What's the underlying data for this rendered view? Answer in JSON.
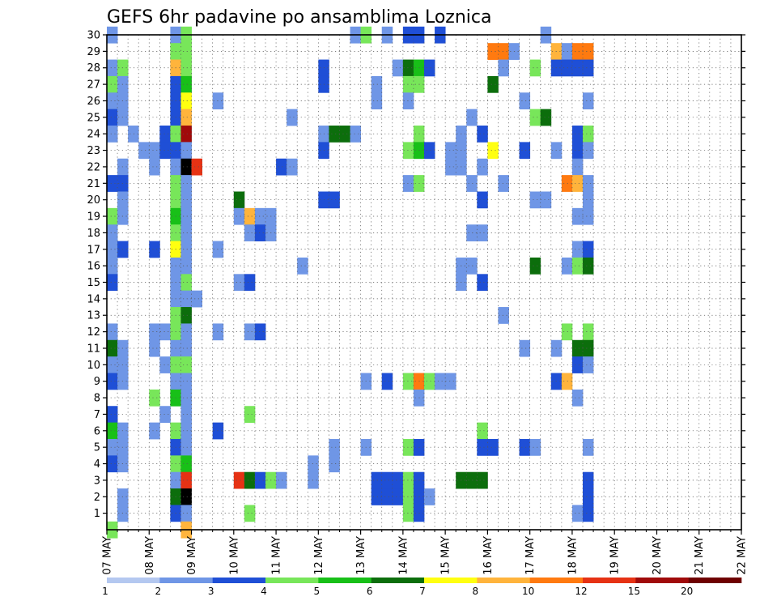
{
  "chart_data": {
    "type": "heatmap",
    "title": "GEFS 6hr padavine po ansamblima Loznica",
    "xlabel": "",
    "ylabel": "",
    "x_ticks": [
      "07 MAY",
      "08 MAY",
      "09 MAY",
      "10 MAY",
      "11 MAY",
      "12 MAY",
      "13 MAY",
      "14 MAY",
      "15 MAY",
      "16 MAY",
      "17 MAY",
      "18 MAY",
      "19 MAY",
      "20 MAY",
      "21 MAY",
      "22 MAY"
    ],
    "y_ticks": [
      "1",
      "2",
      "3",
      "4",
      "5",
      "6",
      "7",
      "8",
      "9",
      "10",
      "11",
      "12",
      "13",
      "14",
      "15",
      "16",
      "17",
      "18",
      "19",
      "20",
      "21",
      "22",
      "23",
      "24",
      "25",
      "26",
      "27",
      "28",
      "29",
      "30"
    ],
    "y_range": [
      0,
      30
    ],
    "steps_per_day": 4,
    "steps": 60,
    "grid": "dotted",
    "legend": "bottom",
    "colorbar": {
      "labels": [
        "1",
        "2",
        "3",
        "4",
        "5",
        "6",
        "7",
        "8",
        "10",
        "12",
        "15",
        "20"
      ],
      "colors": [
        "#b4c8f0",
        "#6f96e6",
        "#1f4fd6",
        "#78e65a",
        "#18c018",
        "#0c6e0c",
        "#ffff10",
        "#ffb43c",
        "#ff7a10",
        "#e63214",
        "#a00a0a",
        "#6e0000"
      ]
    },
    "cells": [
      [
        0,
        30,
        1
      ],
      [
        0,
        28,
        1
      ],
      [
        0,
        27,
        3
      ],
      [
        0,
        26,
        1
      ],
      [
        0,
        25,
        2
      ],
      [
        0,
        24,
        1
      ],
      [
        0,
        21,
        2
      ],
      [
        0,
        19,
        3
      ],
      [
        0,
        18,
        1
      ],
      [
        0,
        17,
        1
      ],
      [
        0,
        16,
        1
      ],
      [
        0,
        15,
        2
      ],
      [
        0,
        12,
        1
      ],
      [
        0,
        11,
        5
      ],
      [
        0,
        10,
        1
      ],
      [
        0,
        9,
        2
      ],
      [
        0,
        7,
        2
      ],
      [
        0,
        6,
        4
      ],
      [
        0,
        5,
        1
      ],
      [
        0,
        4,
        2
      ],
      [
        0,
        0,
        3
      ],
      [
        1,
        28,
        3
      ],
      [
        1,
        27,
        1
      ],
      [
        1,
        26,
        1
      ],
      [
        1,
        25,
        1
      ],
      [
        1,
        22,
        1
      ],
      [
        1,
        21,
        2
      ],
      [
        1,
        20,
        1
      ],
      [
        1,
        19,
        1
      ],
      [
        1,
        17,
        2
      ],
      [
        1,
        11,
        1
      ],
      [
        1,
        10,
        1
      ],
      [
        1,
        9,
        1
      ],
      [
        1,
        6,
        1
      ],
      [
        1,
        5,
        1
      ],
      [
        1,
        4,
        1
      ],
      [
        1,
        2,
        1
      ],
      [
        1,
        1,
        1
      ],
      [
        2,
        24,
        1
      ],
      [
        3,
        23,
        1
      ],
      [
        4,
        23,
        1
      ],
      [
        4,
        22,
        1
      ],
      [
        4,
        17,
        2
      ],
      [
        4,
        12,
        1
      ],
      [
        4,
        11,
        1
      ],
      [
        4,
        8,
        3
      ],
      [
        4,
        6,
        1
      ],
      [
        5,
        24,
        2
      ],
      [
        5,
        23,
        2
      ],
      [
        5,
        12,
        1
      ],
      [
        5,
        10,
        1
      ],
      [
        5,
        7,
        1
      ],
      [
        6,
        30,
        1
      ],
      [
        6,
        29,
        3
      ],
      [
        6,
        28,
        7
      ],
      [
        6,
        27,
        2
      ],
      [
        6,
        26,
        2
      ],
      [
        6,
        25,
        2
      ],
      [
        6,
        24,
        3
      ],
      [
        6,
        23,
        2
      ],
      [
        6,
        22,
        1
      ],
      [
        6,
        21,
        3
      ],
      [
        6,
        20,
        3
      ],
      [
        6,
        19,
        4
      ],
      [
        6,
        18,
        3
      ],
      [
        6,
        17,
        6
      ],
      [
        6,
        16,
        1
      ],
      [
        6,
        15,
        1
      ],
      [
        6,
        14,
        1
      ],
      [
        6,
        13,
        3
      ],
      [
        6,
        12,
        3
      ],
      [
        6,
        11,
        1
      ],
      [
        6,
        10,
        3
      ],
      [
        6,
        9,
        1
      ],
      [
        6,
        8,
        4
      ],
      [
        6,
        6,
        3
      ],
      [
        6,
        5,
        2
      ],
      [
        6,
        4,
        3
      ],
      [
        6,
        3,
        1
      ],
      [
        6,
        2,
        5
      ],
      [
        6,
        1,
        2
      ],
      [
        7,
        30,
        3
      ],
      [
        7,
        29,
        3
      ],
      [
        7,
        28,
        3
      ],
      [
        7,
        27,
        4
      ],
      [
        7,
        26,
        6
      ],
      [
        7,
        25,
        7
      ],
      [
        7,
        24,
        10
      ],
      [
        7,
        23,
        1
      ],
      [
        7,
        22,
        12
      ],
      [
        7,
        21,
        1
      ],
      [
        7,
        20,
        1
      ],
      [
        7,
        19,
        1
      ],
      [
        7,
        18,
        1
      ],
      [
        7,
        17,
        1
      ],
      [
        7,
        16,
        1
      ],
      [
        7,
        15,
        3
      ],
      [
        7,
        14,
        1
      ],
      [
        7,
        13,
        5
      ],
      [
        7,
        12,
        1
      ],
      [
        7,
        11,
        1
      ],
      [
        7,
        10,
        3
      ],
      [
        7,
        9,
        1
      ],
      [
        7,
        8,
        1
      ],
      [
        7,
        7,
        1
      ],
      [
        7,
        6,
        1
      ],
      [
        7,
        5,
        1
      ],
      [
        7,
        4,
        4
      ],
      [
        7,
        3,
        9
      ],
      [
        7,
        2,
        12
      ],
      [
        7,
        1,
        1
      ],
      [
        7,
        0,
        7
      ],
      [
        8,
        22,
        9
      ],
      [
        8,
        14,
        1
      ],
      [
        10,
        26,
        1
      ],
      [
        10,
        17,
        1
      ],
      [
        10,
        12,
        1
      ],
      [
        10,
        6,
        2
      ],
      [
        12,
        20,
        5
      ],
      [
        12,
        19,
        1
      ],
      [
        12,
        15,
        1
      ],
      [
        12,
        3,
        9
      ],
      [
        13,
        19,
        7
      ],
      [
        13,
        18,
        1
      ],
      [
        13,
        15,
        2
      ],
      [
        13,
        12,
        1
      ],
      [
        13,
        7,
        3
      ],
      [
        13,
        3,
        5
      ],
      [
        13,
        1,
        3
      ],
      [
        14,
        19,
        1
      ],
      [
        14,
        18,
        2
      ],
      [
        14,
        12,
        2
      ],
      [
        14,
        3,
        2
      ],
      [
        15,
        19,
        1
      ],
      [
        15,
        18,
        1
      ],
      [
        15,
        3,
        3
      ],
      [
        16,
        22,
        2
      ],
      [
        16,
        3,
        1
      ],
      [
        17,
        25,
        1
      ],
      [
        17,
        22,
        1
      ],
      [
        18,
        16,
        1
      ],
      [
        19,
        4,
        1
      ],
      [
        19,
        3,
        1
      ],
      [
        20,
        28,
        2
      ],
      [
        20,
        27,
        2
      ],
      [
        20,
        24,
        1
      ],
      [
        20,
        23,
        2
      ],
      [
        20,
        20,
        2
      ],
      [
        21,
        24,
        5
      ],
      [
        21,
        20,
        2
      ],
      [
        21,
        5,
        1
      ],
      [
        21,
        4,
        1
      ],
      [
        22,
        24,
        5
      ],
      [
        23,
        30,
        1
      ],
      [
        23,
        24,
        1
      ],
      [
        24,
        30,
        3
      ],
      [
        24,
        9,
        1
      ],
      [
        24,
        5,
        1
      ],
      [
        25,
        27,
        1
      ],
      [
        25,
        26,
        1
      ],
      [
        25,
        3,
        2
      ],
      [
        25,
        2,
        2
      ],
      [
        26,
        30,
        1
      ],
      [
        26,
        9,
        2
      ],
      [
        26,
        3,
        2
      ],
      [
        26,
        2,
        2
      ],
      [
        27,
        28,
        1
      ],
      [
        27,
        3,
        2
      ],
      [
        27,
        2,
        2
      ],
      [
        28,
        30,
        2
      ],
      [
        28,
        28,
        5
      ],
      [
        28,
        27,
        3
      ],
      [
        28,
        26,
        1
      ],
      [
        28,
        23,
        3
      ],
      [
        28,
        21,
        1
      ],
      [
        28,
        9,
        3
      ],
      [
        28,
        5,
        3
      ],
      [
        28,
        3,
        3
      ],
      [
        28,
        2,
        3
      ],
      [
        28,
        1,
        3
      ],
      [
        29,
        30,
        2
      ],
      [
        29,
        28,
        4
      ],
      [
        29,
        27,
        3
      ],
      [
        29,
        24,
        3
      ],
      [
        29,
        23,
        4
      ],
      [
        29,
        21,
        3
      ],
      [
        29,
        9,
        8
      ],
      [
        29,
        8,
        1
      ],
      [
        29,
        5,
        2
      ],
      [
        29,
        3,
        2
      ],
      [
        29,
        2,
        2
      ],
      [
        29,
        1,
        2
      ],
      [
        30,
        28,
        2
      ],
      [
        30,
        23,
        2
      ],
      [
        30,
        9,
        3
      ],
      [
        30,
        2,
        1
      ],
      [
        31,
        30,
        2
      ],
      [
        31,
        9,
        1
      ],
      [
        32,
        23,
        1
      ],
      [
        32,
        22,
        1
      ],
      [
        32,
        9,
        1
      ],
      [
        33,
        24,
        1
      ],
      [
        33,
        23,
        1
      ],
      [
        33,
        22,
        1
      ],
      [
        33,
        16,
        1
      ],
      [
        33,
        15,
        1
      ],
      [
        33,
        3,
        5
      ],
      [
        34,
        25,
        1
      ],
      [
        34,
        21,
        1
      ],
      [
        34,
        18,
        1
      ],
      [
        34,
        16,
        1
      ],
      [
        34,
        3,
        5
      ],
      [
        35,
        24,
        2
      ],
      [
        35,
        22,
        1
      ],
      [
        35,
        20,
        2
      ],
      [
        35,
        18,
        1
      ],
      [
        35,
        15,
        2
      ],
      [
        35,
        6,
        3
      ],
      [
        35,
        5,
        2
      ],
      [
        35,
        3,
        5
      ],
      [
        36,
        29,
        8
      ],
      [
        36,
        27,
        5
      ],
      [
        36,
        23,
        6
      ],
      [
        36,
        5,
        2
      ],
      [
        37,
        29,
        8
      ],
      [
        37,
        28,
        1
      ],
      [
        37,
        21,
        1
      ],
      [
        37,
        13,
        1
      ],
      [
        38,
        29,
        1
      ],
      [
        39,
        26,
        1
      ],
      [
        39,
        23,
        2
      ],
      [
        39,
        11,
        1
      ],
      [
        39,
        5,
        2
      ],
      [
        40,
        28,
        3
      ],
      [
        40,
        25,
        3
      ],
      [
        40,
        20,
        1
      ],
      [
        40,
        16,
        5
      ],
      [
        40,
        5,
        1
      ],
      [
        41,
        30,
        1
      ],
      [
        41,
        25,
        5
      ],
      [
        41,
        20,
        1
      ],
      [
        42,
        29,
        7
      ],
      [
        42,
        28,
        2
      ],
      [
        42,
        23,
        1
      ],
      [
        42,
        11,
        1
      ],
      [
        42,
        9,
        2
      ],
      [
        43,
        29,
        1
      ],
      [
        43,
        28,
        2
      ],
      [
        43,
        21,
        8
      ],
      [
        43,
        16,
        1
      ],
      [
        43,
        12,
        3
      ],
      [
        43,
        9,
        7
      ],
      [
        44,
        29,
        8
      ],
      [
        44,
        28,
        2
      ],
      [
        44,
        24,
        2
      ],
      [
        44,
        23,
        2
      ],
      [
        44,
        22,
        1
      ],
      [
        44,
        21,
        7
      ],
      [
        44,
        19,
        1
      ],
      [
        44,
        17,
        1
      ],
      [
        44,
        16,
        3
      ],
      [
        44,
        11,
        5
      ],
      [
        44,
        10,
        2
      ],
      [
        44,
        8,
        1
      ],
      [
        44,
        1,
        1
      ],
      [
        45,
        29,
        8
      ],
      [
        45,
        28,
        2
      ],
      [
        45,
        26,
        1
      ],
      [
        45,
        24,
        3
      ],
      [
        45,
        23,
        1
      ],
      [
        45,
        21,
        1
      ],
      [
        45,
        20,
        1
      ],
      [
        45,
        19,
        1
      ],
      [
        45,
        17,
        2
      ],
      [
        45,
        16,
        5
      ],
      [
        45,
        12,
        3
      ],
      [
        45,
        11,
        5
      ],
      [
        45,
        10,
        1
      ],
      [
        45,
        5,
        1
      ],
      [
        45,
        3,
        2
      ],
      [
        45,
        2,
        2
      ],
      [
        45,
        1,
        2
      ]
    ]
  }
}
